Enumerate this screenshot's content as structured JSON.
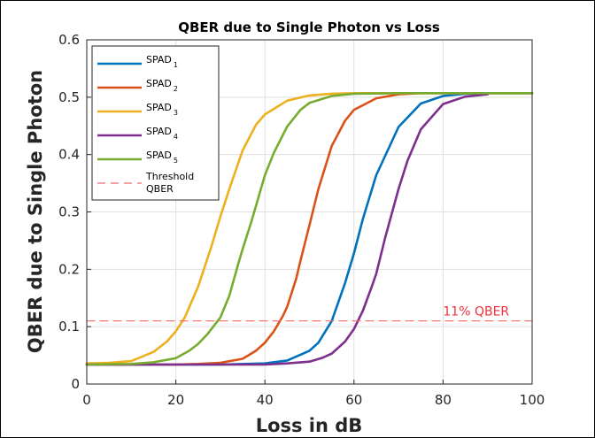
{
  "chart_data": {
    "type": "line",
    "title": "QBER due to Single Photon vs Loss",
    "xlabel": "Loss in dB",
    "ylabel": "QBER due to Single Photon",
    "xlim": [
      0,
      100
    ],
    "ylim": [
      0,
      0.6
    ],
    "xticks": [
      "0",
      "20",
      "40",
      "60",
      "80",
      "100"
    ],
    "yticks": [
      "0",
      "0.1",
      "0.2",
      "0.3",
      "0.4",
      "0.5",
      "0.6"
    ],
    "grid": true,
    "legend_position": "top-left",
    "series": [
      {
        "name": "SPAD",
        "subscript": "1",
        "color": "#0072BD",
        "x": [
          0,
          10,
          20,
          30,
          40,
          45,
          50,
          52,
          55,
          58,
          60,
          62,
          65,
          70,
          75,
          80,
          85,
          90,
          100
        ],
        "y": [
          0.034,
          0.034,
          0.034,
          0.034,
          0.036,
          0.041,
          0.058,
          0.072,
          0.11,
          0.176,
          0.228,
          0.288,
          0.364,
          0.448,
          0.489,
          0.502,
          0.506,
          0.507,
          0.507
        ]
      },
      {
        "name": "SPAD",
        "subscript": "2",
        "color": "#D95319",
        "x": [
          0,
          10,
          20,
          25,
          30,
          35,
          38,
          40,
          42,
          44,
          45,
          47,
          48,
          50,
          52,
          55,
          58,
          60,
          65,
          70,
          75,
          80,
          90,
          100
        ],
        "y": [
          0.034,
          0.034,
          0.034,
          0.035,
          0.037,
          0.044,
          0.058,
          0.072,
          0.092,
          0.118,
          0.135,
          0.183,
          0.215,
          0.277,
          0.34,
          0.415,
          0.459,
          0.478,
          0.498,
          0.505,
          0.507,
          0.507,
          0.507,
          0.507
        ]
      },
      {
        "name": "SPAD",
        "subscript": "3",
        "color": "#EDB120",
        "x": [
          0,
          5,
          10,
          15,
          18,
          20,
          22,
          25,
          28,
          30,
          32,
          35,
          38,
          40,
          45,
          50,
          55,
          60,
          70,
          80,
          100
        ],
        "y": [
          0.036,
          0.037,
          0.04,
          0.056,
          0.074,
          0.092,
          0.116,
          0.17,
          0.24,
          0.292,
          0.34,
          0.407,
          0.452,
          0.47,
          0.494,
          0.503,
          0.506,
          0.507,
          0.507,
          0.507,
          0.507
        ]
      },
      {
        "name": "SPAD",
        "subscript": "4",
        "color": "#7E2F8E",
        "x": [
          0,
          10,
          20,
          30,
          40,
          45,
          50,
          53,
          55,
          58,
          60,
          62,
          64,
          65,
          67,
          70,
          72,
          75,
          80,
          85,
          90
        ],
        "y": [
          0.034,
          0.034,
          0.034,
          0.034,
          0.034,
          0.036,
          0.039,
          0.046,
          0.053,
          0.074,
          0.096,
          0.128,
          0.17,
          0.192,
          0.255,
          0.34,
          0.389,
          0.444,
          0.488,
          0.501,
          0.505
        ]
      },
      {
        "name": "SPAD",
        "subscript": "5",
        "color": "#77AC30",
        "x": [
          0,
          10,
          15,
          20,
          23,
          25,
          27,
          28,
          30,
          32,
          34,
          35,
          37,
          40,
          42,
          45,
          48,
          50,
          55,
          60,
          70,
          80,
          100
        ],
        "y": [
          0.034,
          0.035,
          0.038,
          0.045,
          0.058,
          0.07,
          0.086,
          0.096,
          0.116,
          0.154,
          0.209,
          0.235,
          0.284,
          0.364,
          0.403,
          0.449,
          0.478,
          0.49,
          0.502,
          0.506,
          0.507,
          0.507,
          0.507
        ]
      },
      {
        "name": "Threshold QBER",
        "color": "#F26A6A",
        "dashed": true,
        "x": [
          0,
          100
        ],
        "y": [
          0.11,
          0.11
        ]
      }
    ],
    "annotations": [
      {
        "text": "11% QBER",
        "x": 80,
        "y": 0.11,
        "color": "#F0323C"
      }
    ]
  }
}
